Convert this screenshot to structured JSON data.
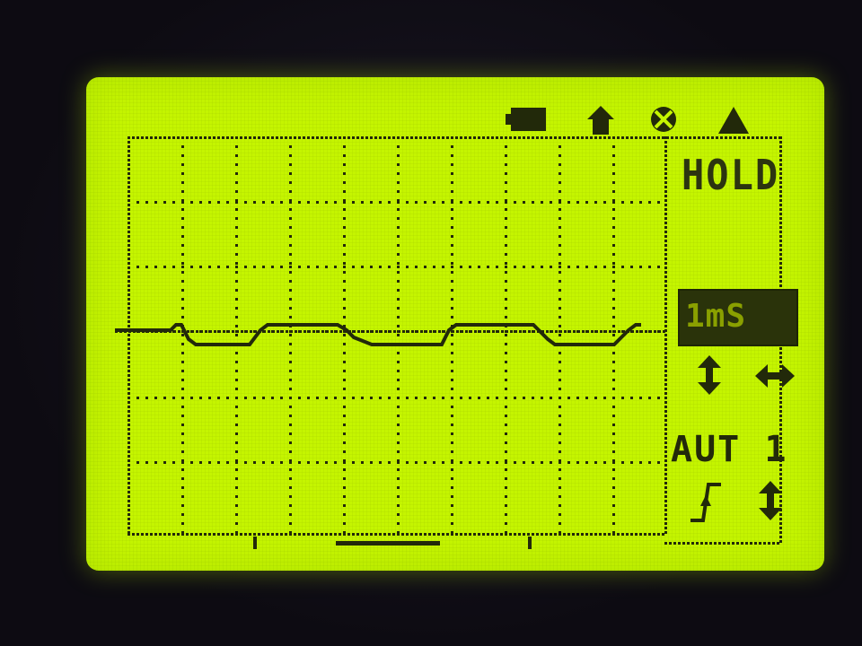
{
  "status_bar": {
    "icons": [
      "battery-icon",
      "home-icon",
      "clear-icon",
      "warning-icon"
    ]
  },
  "side_panel": {
    "mode": "HOLD",
    "timebase": "1mS",
    "trigger_mode": "AUT 1",
    "icons": [
      "vertical-position-arrows-icon",
      "horizontal-position-arrows-icon",
      "rising-edge-trigger-icon",
      "trigger-level-arrows-icon"
    ]
  },
  "colors": {
    "lcd_background": "#c5f500",
    "pixel_dark": "#22290a",
    "bezel": "#120f1a"
  }
}
